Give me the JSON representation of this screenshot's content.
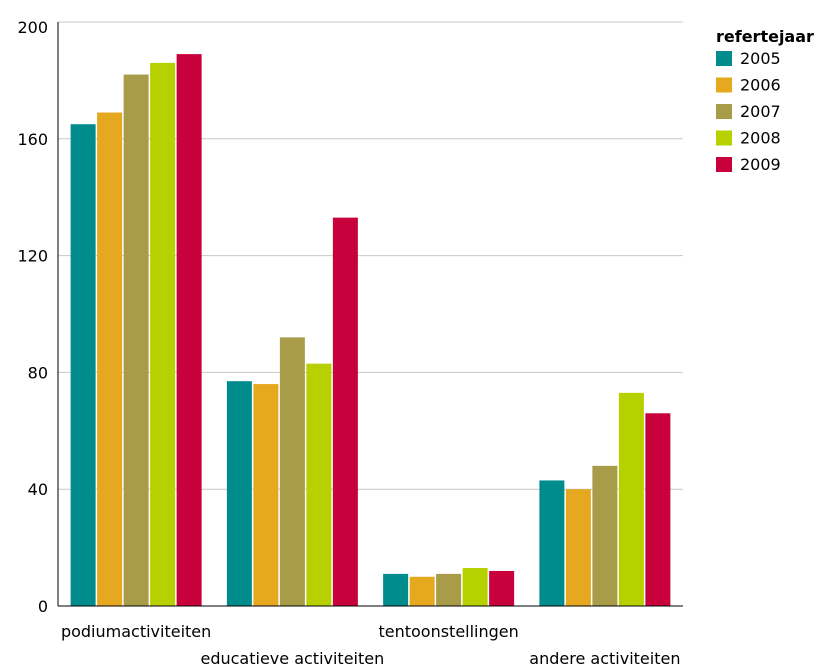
{
  "chart_data": {
    "type": "bar",
    "categories": [
      "podiumactiviteiten",
      "educatieve activiteiten",
      "tentoonstellingen",
      "andere activiteiten"
    ],
    "series": [
      {
        "name": "2005",
        "color": "#008c8c",
        "values": [
          165,
          77,
          11,
          43
        ]
      },
      {
        "name": "2006",
        "color": "#e5a81e",
        "values": [
          169,
          76,
          10,
          40
        ]
      },
      {
        "name": "2007",
        "color": "#a99c48",
        "values": [
          182,
          92,
          11,
          48
        ]
      },
      {
        "name": "2008",
        "color": "#b7d100",
        "values": [
          186,
          83,
          13,
          73
        ]
      },
      {
        "name": "2009",
        "color": "#c8003b",
        "values": [
          189,
          133,
          12,
          66
        ]
      }
    ],
    "title": "",
    "xlabel": "",
    "ylabel": "",
    "ylim": [
      0,
      200
    ],
    "yticks": [
      0,
      40,
      80,
      120,
      160,
      200
    ],
    "grid": true,
    "legend": {
      "title": "refertejaar",
      "placement": "top-right"
    }
  }
}
